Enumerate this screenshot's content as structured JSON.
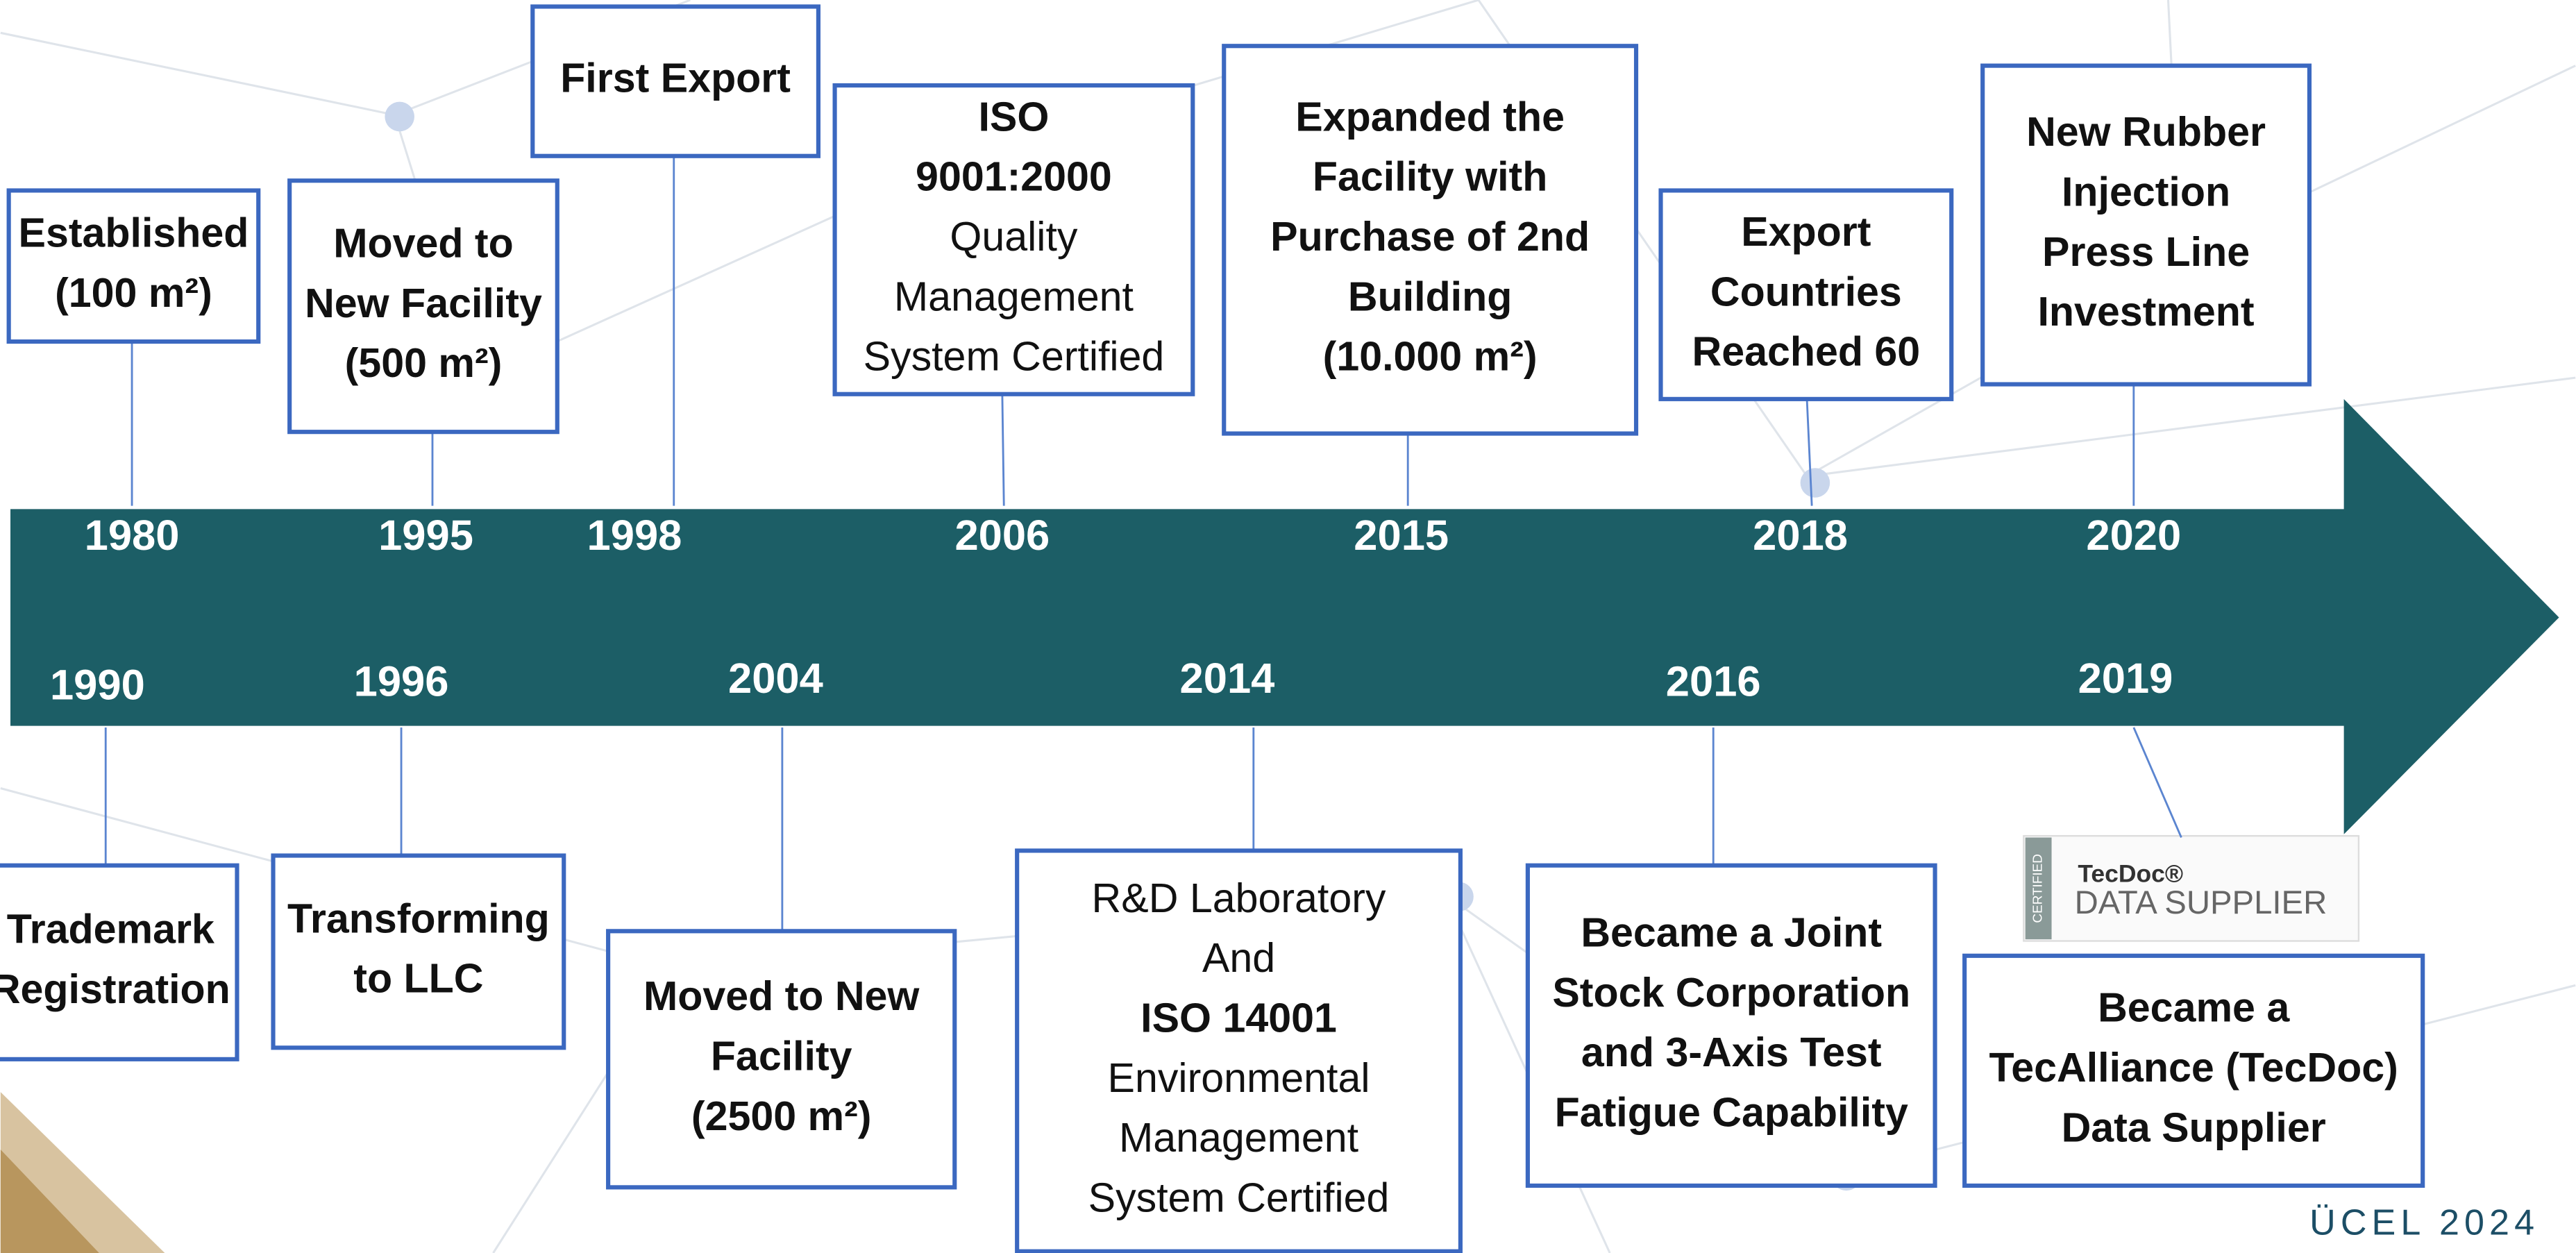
{
  "events": {
    "top": [
      {
        "year": "1980",
        "lines": [
          {
            "text": "Established",
            "bold": true
          },
          {
            "text": "(100 m²)",
            "bold": true
          }
        ]
      },
      {
        "year": "1995",
        "lines": [
          {
            "text": "Moved to",
            "bold": true
          },
          {
            "text": "New Facility",
            "bold": true
          },
          {
            "text": "(500 m²)",
            "bold": true
          }
        ]
      },
      {
        "year": "1998",
        "lines": [
          {
            "text": "First Export",
            "bold": true
          }
        ]
      },
      {
        "year": "2006",
        "lines": [
          {
            "text": "ISO",
            "bold": true
          },
          {
            "text": "9001:2000",
            "bold": true
          },
          {
            "text": "Quality",
            "bold": false
          },
          {
            "text": "Management",
            "bold": false
          },
          {
            "text": "System Certified",
            "bold": false
          }
        ]
      },
      {
        "year": "2015",
        "lines": [
          {
            "text": "Expanded the",
            "bold": true
          },
          {
            "text": "Facility with",
            "bold": true
          },
          {
            "text": "Purchase of 2nd",
            "bold": true
          },
          {
            "text": "Building",
            "bold": true
          },
          {
            "text": "(10.000 m²)",
            "bold": true
          }
        ]
      },
      {
        "year": "2018",
        "lines": [
          {
            "text": "Export",
            "bold": true
          },
          {
            "text": "Countries",
            "bold": true
          },
          {
            "text": "Reached 60",
            "bold": true
          }
        ]
      },
      {
        "year": "2020",
        "lines": [
          {
            "text": "New Rubber",
            "bold": true
          },
          {
            "text": "Injection",
            "bold": true
          },
          {
            "text": "Press Line",
            "bold": true
          },
          {
            "text": "Investment",
            "bold": true
          }
        ]
      }
    ],
    "bottom": [
      {
        "year": "1990",
        "lines": [
          {
            "text": "Trademark",
            "bold": true
          },
          {
            "text": "Registration",
            "bold": true
          }
        ]
      },
      {
        "year": "1996",
        "lines": [
          {
            "text": "Transforming",
            "bold": true
          },
          {
            "text": "to LLC",
            "bold": true
          }
        ]
      },
      {
        "year": "2004",
        "lines": [
          {
            "text": "Moved to New",
            "bold": true
          },
          {
            "text": "Facility",
            "bold": true
          },
          {
            "text": "(2500 m²)",
            "bold": true
          }
        ]
      },
      {
        "year": "2014",
        "lines": [
          {
            "text": "R&D Laboratory",
            "bold": false
          },
          {
            "text": "And",
            "bold": false
          },
          {
            "text": "ISO 14001",
            "bold": true
          },
          {
            "text": "Environmental",
            "bold": false
          },
          {
            "text": "Management",
            "bold": false
          },
          {
            "text": "System Certified",
            "bold": false
          }
        ]
      },
      {
        "year": "2016",
        "lines": [
          {
            "text": "Became a Joint",
            "bold": true
          },
          {
            "text": "Stock Corporation",
            "bold": true
          },
          {
            "text": "and 3-Axis Test",
            "bold": true
          },
          {
            "text": "Fatigue Capability",
            "bold": true
          }
        ]
      },
      {
        "year": "2019",
        "lines": [
          {
            "text": "Became a",
            "bold": true
          },
          {
            "text": "TecAlliance (TecDoc)",
            "bold": true
          },
          {
            "text": "Data Supplier",
            "bold": true
          }
        ]
      }
    ]
  },
  "logo": {
    "badge": "CERTIFIED",
    "brand": "TecDoc®",
    "caption": "DATA SUPPLIER"
  },
  "footer": "ÜCEL 2024"
}
